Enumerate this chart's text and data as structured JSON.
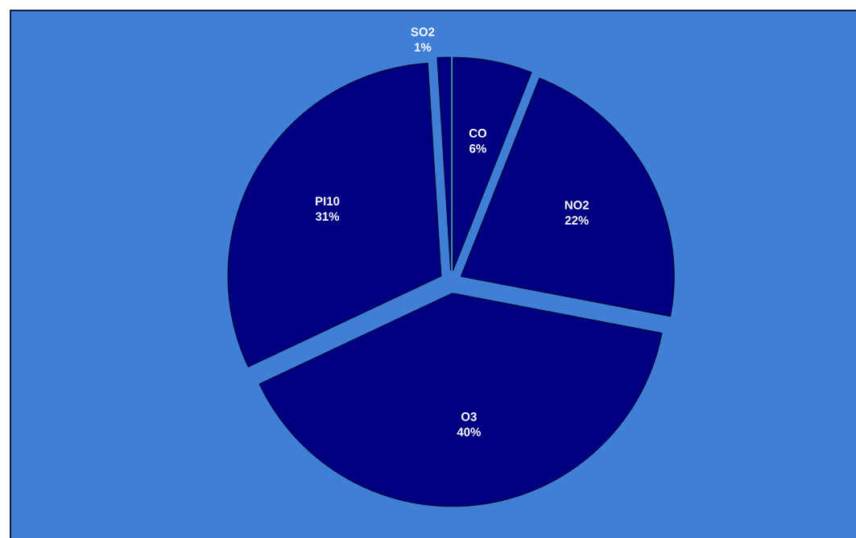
{
  "chart_data": {
    "type": "pie",
    "categories": [
      "CO",
      "NO2",
      "O3",
      "PI10",
      "SO2"
    ],
    "values": [
      6,
      22,
      40,
      31,
      1
    ],
    "value_labels": [
      "6%",
      "22%",
      "40%",
      "31%",
      "1%"
    ],
    "colors": [
      "#000080",
      "#000080",
      "#000080",
      "#000080",
      "#000080"
    ]
  }
}
